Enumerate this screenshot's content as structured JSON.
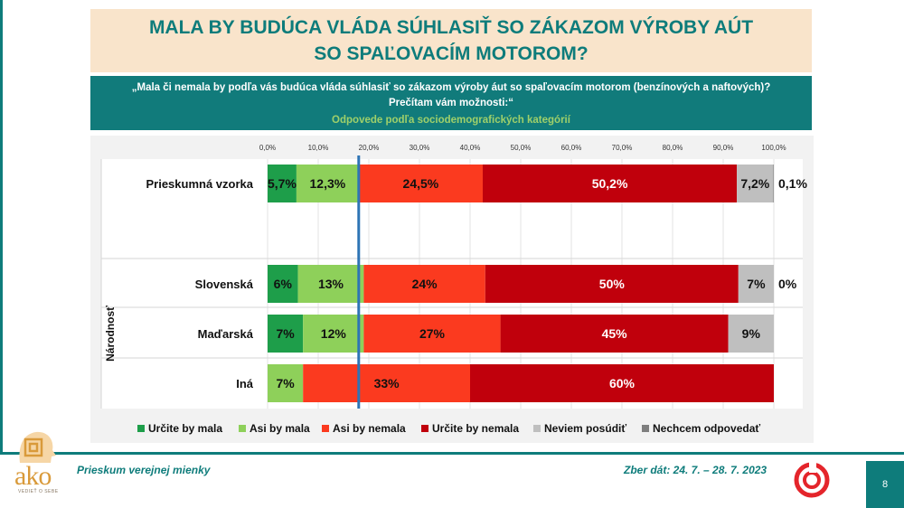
{
  "title": "MALA BY BUDÚCA VLÁDA SÚHLASIŤ SO ZÁKAZOM VÝROBY AÚT SO SPAĽOVACÍM MOTOROM?",
  "question": {
    "line1": "„Mala či nemala by podľa vás budúca vláda súhlasiť so zákazom výroby áut so spaľovacím motorom (benzínových a naftových)?",
    "line2": "Prečítam vám možnosti:“",
    "subtitle": "Odpovede podľa sociodemografických kategórií"
  },
  "chart_data": {
    "type": "bar",
    "orientation": "horizontal",
    "stacked": true,
    "xlim": [
      0,
      100
    ],
    "tick_labels": [
      "0,0%",
      "10,0%",
      "20,0%",
      "30,0%",
      "40,0%",
      "50,0%",
      "60,0%",
      "70,0%",
      "80,0%",
      "90,0%",
      "100,0%"
    ],
    "reference_line_at": 18,
    "group_label": "Národnosť",
    "categories": [
      "Prieskumná vzorka",
      "Slovenská",
      "Maďarská",
      "Iná"
    ],
    "series": [
      {
        "name": "Určite by mala",
        "color": "#1e9e4a",
        "values": [
          5.7,
          6,
          7,
          0
        ],
        "labels": [
          "5,7%",
          "6%",
          "7%",
          ""
        ]
      },
      {
        "name": "Asi by mala",
        "color": "#8ed05a",
        "values": [
          12.3,
          13,
          12,
          7
        ],
        "labels": [
          "12,3%",
          "13%",
          "12%",
          "7%"
        ]
      },
      {
        "name": "Asi by nemala",
        "color": "#fb3a1f",
        "values": [
          24.5,
          24,
          27,
          33
        ],
        "labels": [
          "24,5%",
          "24%",
          "27%",
          "33%"
        ]
      },
      {
        "name": "Určite by nemala",
        "color": "#c0000c",
        "values": [
          50.2,
          50,
          45,
          60
        ],
        "labels": [
          "50,2%",
          "50%",
          "45%",
          "60%"
        ]
      },
      {
        "name": "Neviem posúdiť",
        "color": "#bfbfbf",
        "values": [
          7.2,
          7,
          9,
          0
        ],
        "labels": [
          "7,2%",
          "7%",
          "9%",
          ""
        ]
      },
      {
        "name": "Nechcem odpovedať",
        "color": "#7f7f7f",
        "values": [
          0.1,
          0,
          0,
          0
        ],
        "labels": [
          "0,1%",
          "0%",
          "",
          ""
        ]
      }
    ]
  },
  "footer": {
    "left": "Prieskum verejnej mienky",
    "right": "Zber dát: 24. 7. – 28. 7. 2023",
    "page": "8"
  },
  "logos": {
    "ako": "ako",
    "ako_tagline": "VEDIEŤ O SEBE"
  }
}
